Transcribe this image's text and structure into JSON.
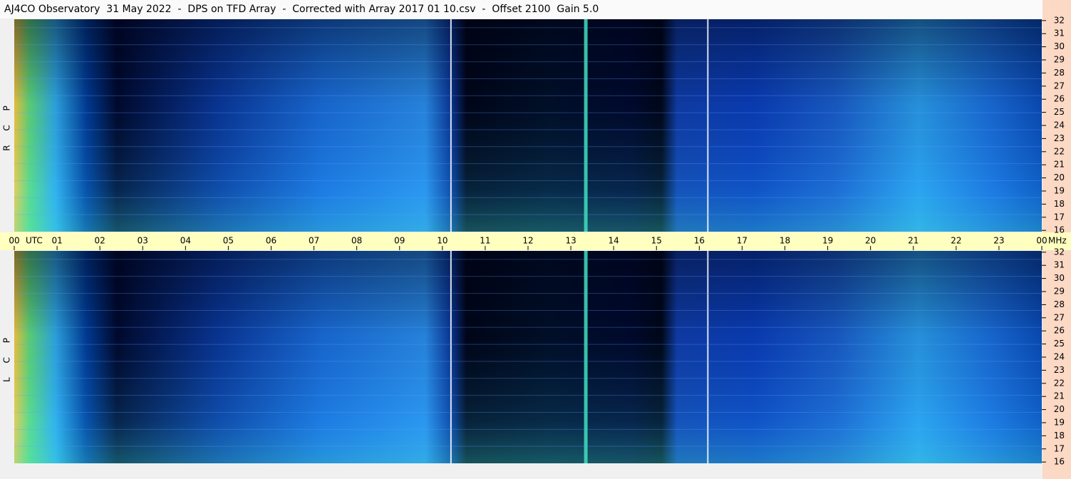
{
  "chart_data": [
    {
      "type": "spectrogram",
      "title": "AJ4CO Observatory  31 May 2022  -  DPS on TFD Array  -  Corrected with Array 2017 01 10.csv  -  Offset 2100  Gain 5.0",
      "name": "R C P",
      "xlabel": "UTC",
      "ylabel": "MHz",
      "xlim": [
        0,
        24
      ],
      "xticks": [
        {
          "value": 0,
          "label": "00"
        },
        {
          "value": 1,
          "label": "01"
        },
        {
          "value": 2,
          "label": "02"
        },
        {
          "value": 3,
          "label": "03"
        },
        {
          "value": 4,
          "label": "04"
        },
        {
          "value": 5,
          "label": "05"
        },
        {
          "value": 6,
          "label": "06"
        },
        {
          "value": 7,
          "label": "07"
        },
        {
          "value": 8,
          "label": "08"
        },
        {
          "value": 9,
          "label": "09"
        },
        10,
        11,
        12,
        13,
        14,
        15,
        16,
        17,
        18,
        19,
        20,
        21,
        22,
        23,
        {
          "value": 24,
          "label": "00"
        }
      ],
      "ylim": [
        15.9,
        32.1
      ],
      "yticks": [
        16,
        17,
        18,
        19,
        20,
        21,
        22,
        23,
        24,
        25,
        26,
        27,
        28,
        29,
        30,
        31,
        32
      ]
    },
    {
      "type": "spectrogram",
      "name": "L C P",
      "xlim": [
        0,
        24
      ],
      "ylim": [
        15.9,
        32.1
      ],
      "yticks": [
        16,
        17,
        18,
        19,
        20,
        21,
        22,
        23,
        24,
        25,
        26,
        27,
        28,
        29,
        30,
        31,
        32
      ]
    }
  ]
}
